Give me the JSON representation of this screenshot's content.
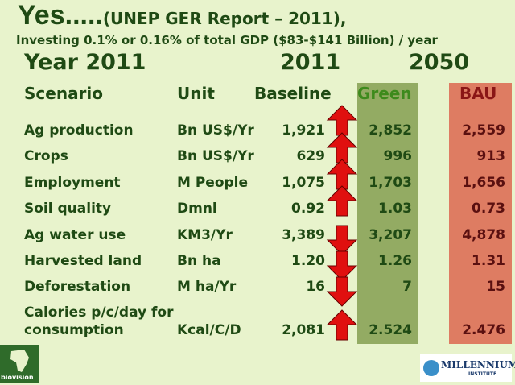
{
  "header": {
    "title": "Yes.....",
    "title_rest": "(UNEP GER Report  – 2011),",
    "subtitle": "Investing 0.1% or 0.16% of total GDP ($83-$141 Billion) / year"
  },
  "year_row": [
    "Year 2011",
    "2011",
    "2050"
  ],
  "table": {
    "columns": [
      "Scenario",
      "Unit",
      "Baseline",
      "Green",
      "BAU"
    ],
    "rows": [
      [
        "Ag production",
        "Bn US$/Yr",
        "1,921",
        "2,852",
        "2,559"
      ],
      [
        "Crops",
        "Bn US$/Yr",
        "629",
        "996",
        "913"
      ],
      [
        "Employment",
        "M People",
        "1,075",
        "1,703",
        "1,656"
      ],
      [
        "Soil quality",
        "Dmnl",
        "0.92",
        "1.03",
        "0.73"
      ],
      [
        "Ag water use",
        "KM3/Yr",
        "3,389",
        "3,207",
        "4,878"
      ],
      [
        "Harvested land",
        "Bn ha",
        "1.20",
        "1.26",
        "1.31"
      ],
      [
        "Deforestation",
        "M ha/Yr",
        "16",
        "7",
        "15"
      ],
      [
        "Calories p/c/day for consumption",
        "Kcal/C/D",
        "2,081",
        "2.524",
        "2.476"
      ]
    ]
  },
  "logos": {
    "left": "biovision",
    "right": "MILLENNIUM",
    "right_sub": "INSTITUTE"
  }
}
